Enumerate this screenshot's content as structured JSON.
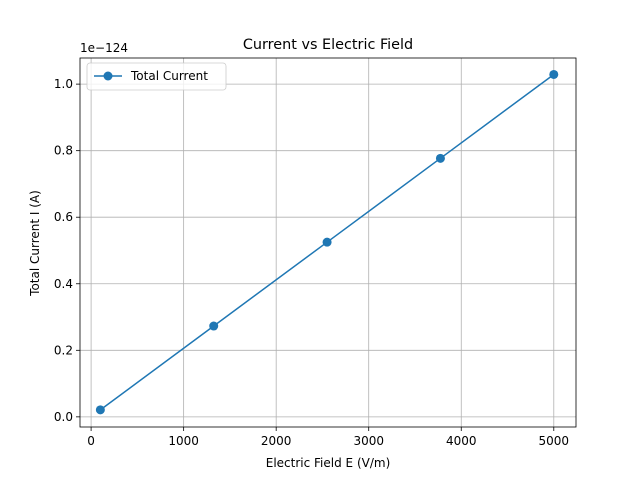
{
  "chart_data": {
    "type": "line",
    "title": "Current vs Electric Field",
    "xlabel": "Electric Field E (V/m)",
    "ylabel": "Total Current I (A)",
    "y_offset_label": "1e−124",
    "xlim": [
      -120,
      5240
    ],
    "ylim": [
      -0.0305,
      1.0785
    ],
    "x_ticks": [
      0,
      1000,
      2000,
      3000,
      4000,
      5000
    ],
    "x_tick_labels": [
      "0",
      "1000",
      "2000",
      "3000",
      "4000",
      "5000"
    ],
    "y_ticks": [
      0.0,
      0.2,
      0.4,
      0.6,
      0.8,
      1.0
    ],
    "y_tick_labels": [
      "0.0",
      "0.2",
      "0.4",
      "0.6",
      "0.8",
      "1.0"
    ],
    "grid": true,
    "legend_position": "upper left",
    "series": [
      {
        "name": "Total Current",
        "color": "#1f77b4",
        "marker": "circle",
        "x": [
          100,
          1325,
          2550,
          3775,
          5000
        ],
        "y": [
          0.021,
          0.273,
          0.525,
          0.777,
          1.029
        ]
      }
    ]
  }
}
